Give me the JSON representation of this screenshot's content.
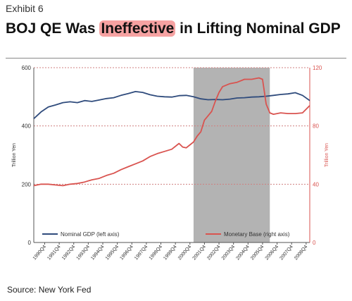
{
  "header": {
    "exhibit": "Exhibit 6",
    "title_before": "BOJ QE Was ",
    "title_highlight": "Ineffective",
    "title_after": " in Lifting Nominal GDP"
  },
  "footer": {
    "source": "Source: New York Fed"
  },
  "colors": {
    "gdp": "#2f4b7c",
    "base": "#d9534f",
    "shade": "#b3b3b3",
    "highlight": "#f6a2a2",
    "grid": "#d08080"
  },
  "chart_data": {
    "type": "line",
    "title": "",
    "xlabel": "",
    "ylabel_left": "Trillion Yen",
    "ylabel_right": "Trillion Yen",
    "ylim_left": [
      0,
      600
    ],
    "ylim_right": [
      0,
      120
    ],
    "yticks_left": [
      "0",
      "200",
      "400",
      "600"
    ],
    "yticks_right": [
      "0",
      "40",
      "80",
      "120"
    ],
    "x_ticks": [
      "1990Q4",
      "1991Q4",
      "1992Q4",
      "1993Q4",
      "1994Q4",
      "1995Q4",
      "1996Q4",
      "1997Q4",
      "1998Q4",
      "1999Q4",
      "2000Q4",
      "2001Q4",
      "2002Q4",
      "2003Q4",
      "2004Q4",
      "2005Q4",
      "2006Q4",
      "2007Q4",
      "2008Q4"
    ],
    "x_range": [
      1990.0,
      2009.0
    ],
    "shaded_region": [
      2001.0,
      2006.25
    ],
    "grid": true,
    "legend_position": "bottom",
    "series": [
      {
        "name": "Nominal GDP (left axis)",
        "axis": "left",
        "x": [
          1990.0,
          1990.5,
          1991.0,
          1991.5,
          1992.0,
          1992.5,
          1993.0,
          1993.5,
          1994.0,
          1994.5,
          1995.0,
          1995.5,
          1996.0,
          1996.5,
          1997.0,
          1997.5,
          1998.0,
          1998.5,
          1999.0,
          1999.5,
          2000.0,
          2000.5,
          2001.0,
          2001.5,
          2002.0,
          2002.5,
          2003.0,
          2003.5,
          2004.0,
          2004.5,
          2005.0,
          2005.5,
          2006.0,
          2006.5,
          2007.0,
          2007.5,
          2008.0,
          2008.5,
          2009.0
        ],
        "values": [
          425,
          448,
          465,
          472,
          480,
          483,
          480,
          487,
          484,
          489,
          494,
          497,
          505,
          511,
          518,
          515,
          507,
          502,
          500,
          499,
          504,
          505,
          500,
          493,
          490,
          491,
          490,
          492,
          496,
          497,
          499,
          500,
          502,
          505,
          508,
          510,
          514,
          505,
          487
        ]
      },
      {
        "name": "Monetary Base (right axis)",
        "axis": "right",
        "x": [
          1990.0,
          1990.5,
          1991.0,
          1991.5,
          1992.0,
          1992.5,
          1993.0,
          1993.5,
          1994.0,
          1994.5,
          1995.0,
          1995.5,
          1996.0,
          1996.5,
          1997.0,
          1997.5,
          1998.0,
          1998.5,
          1999.0,
          1999.5,
          2000.0,
          2000.25,
          2000.5,
          2000.75,
          2001.0,
          2001.25,
          2001.5,
          2001.75,
          2002.0,
          2002.25,
          2002.5,
          2002.75,
          2003.0,
          2003.5,
          2004.0,
          2004.5,
          2005.0,
          2005.5,
          2005.75,
          2006.0,
          2006.25,
          2006.5,
          2007.0,
          2007.5,
          2008.0,
          2008.5,
          2009.0
        ],
        "values": [
          39,
          40,
          40,
          39.5,
          39,
          40,
          40.5,
          41.5,
          43,
          44,
          46,
          47.5,
          50,
          52,
          54,
          56,
          59,
          61,
          62.5,
          64,
          68,
          65.5,
          65,
          67,
          69,
          73,
          76,
          84,
          87,
          90,
          97,
          103,
          107,
          109,
          110,
          112,
          112,
          113,
          112,
          95,
          89,
          88,
          89,
          88.5,
          88.5,
          89,
          94
        ]
      }
    ]
  }
}
